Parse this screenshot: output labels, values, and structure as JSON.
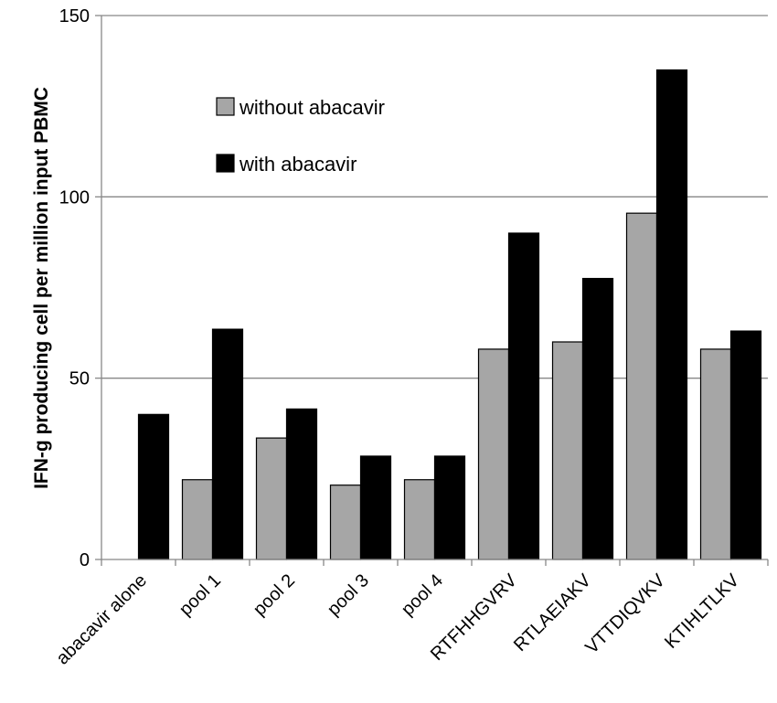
{
  "chart_data": {
    "type": "bar",
    "title": "",
    "xlabel": "",
    "ylabel": "IFN-g producing cell per million input PBMC",
    "ylim": [
      0,
      150
    ],
    "yticks": [
      0,
      50,
      100,
      150
    ],
    "grid": true,
    "legend_position": "upper-left",
    "categories": [
      "abacavir alone",
      "pool 1",
      "pool 2",
      "pool 3",
      "pool 4",
      "RTFHHGVRV",
      "RTLAEIAKV",
      "VTTDIQVKV",
      "KTIHLTLKV"
    ],
    "series": [
      {
        "name": "without abacavir",
        "color": "#a6a6a6",
        "values": [
          0,
          22,
          33.5,
          20.5,
          22,
          58,
          60,
          95.5,
          58
        ]
      },
      {
        "name": "with abacavir",
        "color": "#000000",
        "values": [
          40,
          63.5,
          41.5,
          28.5,
          28.5,
          90,
          77.5,
          135,
          63
        ]
      }
    ]
  }
}
